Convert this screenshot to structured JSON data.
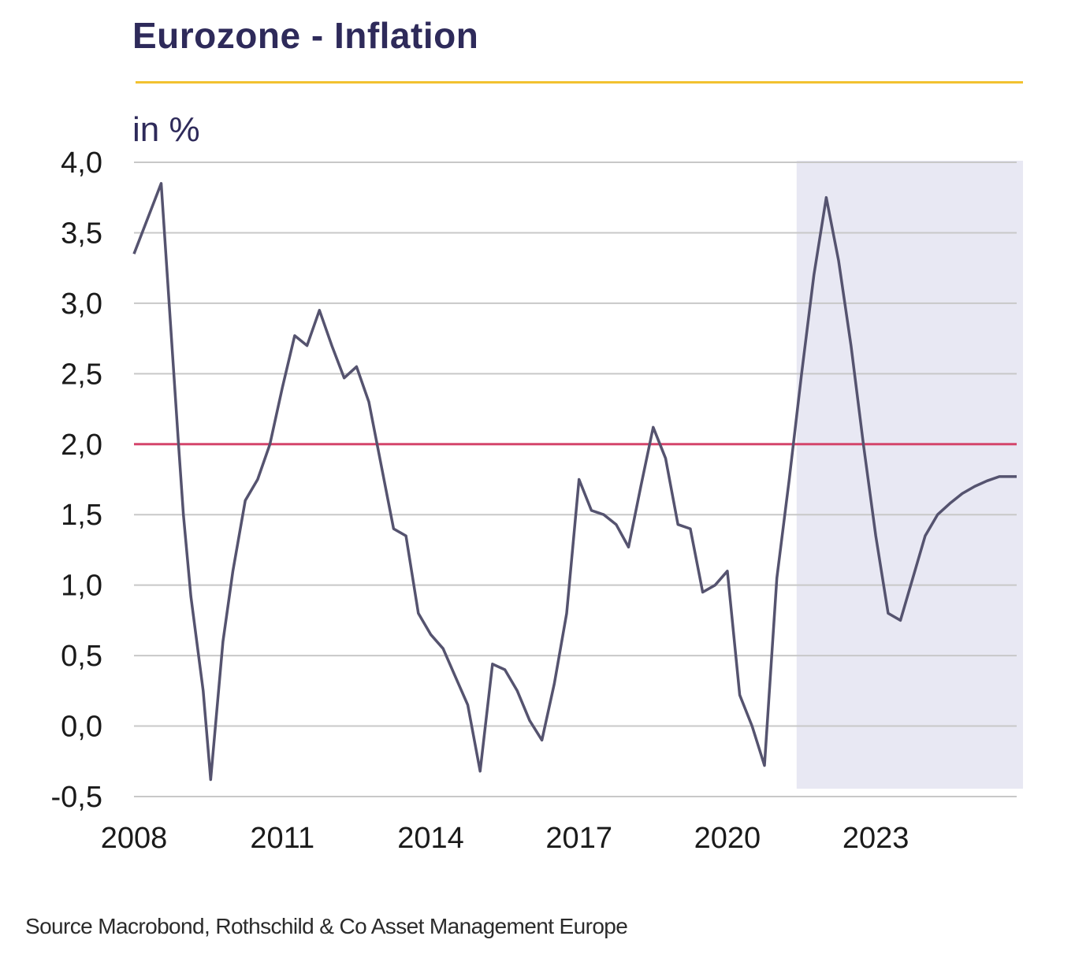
{
  "header": {
    "title": "Eurozone - Inflation",
    "unit": "in %"
  },
  "footer": {
    "source": "Source Macrobond, Rothschild & Co Asset Management Europe"
  },
  "colors": {
    "title": "#2e2a5a",
    "title_rule": "#f2c230",
    "series": "#55536f",
    "target_line": "#d4456b",
    "forecast_band": "#e8e8f3",
    "grid": "#c8c8c8"
  },
  "chart_data": {
    "type": "line",
    "title": "Eurozone - Inflation",
    "ylabel": "in %",
    "xlabel": "",
    "xlim": [
      2008.0,
      2025.85
    ],
    "ylim": [
      -0.5,
      4.0
    ],
    "x_ticks": [
      2008,
      2011,
      2014,
      2017,
      2020,
      2023
    ],
    "x_tick_labels": [
      "2008",
      "2011",
      "2014",
      "2017",
      "2020",
      "2023"
    ],
    "y_ticks": [
      4.0,
      3.5,
      3.0,
      2.5,
      2.0,
      1.5,
      1.0,
      0.5,
      0.0,
      -0.5
    ],
    "y_tick_labels": [
      "4,0",
      "3,5",
      "3,0",
      "2,5",
      "2,0",
      "1,5",
      "1,0",
      "0,5",
      "0,0",
      "-0,5"
    ],
    "grid": true,
    "legend": "none",
    "reference_line": {
      "y": 2.0
    },
    "forecast_region": {
      "x_start": 2021.4,
      "x_end": 2025.85
    },
    "series": [
      {
        "values": [
          [
            2008.0,
            3.35
          ],
          [
            2008.55,
            3.85
          ],
          [
            2008.9,
            2.0
          ],
          [
            2009.0,
            1.5
          ],
          [
            2009.15,
            0.92
          ],
          [
            2009.4,
            0.25
          ],
          [
            2009.55,
            -0.38
          ],
          [
            2009.8,
            0.6
          ],
          [
            2010.0,
            1.1
          ],
          [
            2010.25,
            1.6
          ],
          [
            2010.5,
            1.75
          ],
          [
            2010.75,
            2.0
          ],
          [
            2011.0,
            2.4
          ],
          [
            2011.25,
            2.77
          ],
          [
            2011.5,
            2.7
          ],
          [
            2011.75,
            2.95
          ],
          [
            2012.0,
            2.7
          ],
          [
            2012.25,
            2.47
          ],
          [
            2012.5,
            2.55
          ],
          [
            2012.75,
            2.3
          ],
          [
            2013.0,
            1.85
          ],
          [
            2013.25,
            1.4
          ],
          [
            2013.5,
            1.35
          ],
          [
            2013.75,
            0.8
          ],
          [
            2014.0,
            0.65
          ],
          [
            2014.25,
            0.55
          ],
          [
            2014.5,
            0.35
          ],
          [
            2014.75,
            0.15
          ],
          [
            2015.0,
            -0.32
          ],
          [
            2015.25,
            0.44
          ],
          [
            2015.5,
            0.4
          ],
          [
            2015.75,
            0.25
          ],
          [
            2016.0,
            0.04
          ],
          [
            2016.25,
            -0.1
          ],
          [
            2016.5,
            0.3
          ],
          [
            2016.75,
            0.8
          ],
          [
            2017.0,
            1.75
          ],
          [
            2017.25,
            1.53
          ],
          [
            2017.5,
            1.5
          ],
          [
            2017.75,
            1.43
          ],
          [
            2018.0,
            1.27
          ],
          [
            2018.25,
            1.7
          ],
          [
            2018.5,
            2.12
          ],
          [
            2018.75,
            1.9
          ],
          [
            2019.0,
            1.43
          ],
          [
            2019.25,
            1.4
          ],
          [
            2019.5,
            0.95
          ],
          [
            2019.75,
            1.0
          ],
          [
            2020.0,
            1.1
          ],
          [
            2020.25,
            0.22
          ],
          [
            2020.5,
            0.0
          ],
          [
            2020.75,
            -0.28
          ],
          [
            2021.0,
            1.05
          ],
          [
            2021.25,
            1.75
          ],
          [
            2021.5,
            2.5
          ],
          [
            2021.75,
            3.2
          ],
          [
            2022.0,
            3.75
          ],
          [
            2022.25,
            3.3
          ],
          [
            2022.5,
            2.7
          ],
          [
            2022.75,
            2.0
          ],
          [
            2023.0,
            1.35
          ],
          [
            2023.25,
            0.8
          ],
          [
            2023.5,
            0.75
          ],
          [
            2023.75,
            1.05
          ],
          [
            2024.0,
            1.35
          ],
          [
            2024.25,
            1.5
          ],
          [
            2024.5,
            1.58
          ],
          [
            2024.75,
            1.65
          ],
          [
            2025.0,
            1.7
          ],
          [
            2025.25,
            1.74
          ],
          [
            2025.5,
            1.77
          ],
          [
            2025.85,
            1.77
          ]
        ]
      }
    ]
  }
}
